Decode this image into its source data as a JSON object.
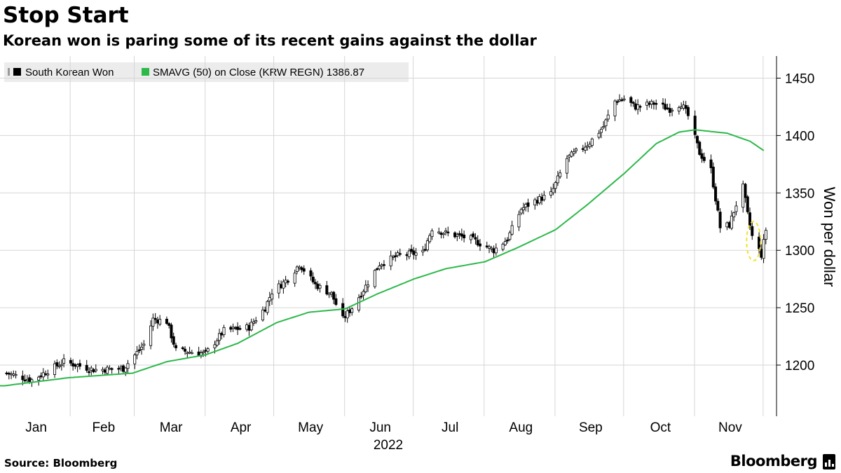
{
  "header": {
    "title": "Stop Start",
    "subtitle": "Korean won is paring some of its recent gains against the dollar"
  },
  "footer": {
    "source": "Source: Bloomberg",
    "brand": "Bloomberg"
  },
  "colors": {
    "candle": "#000000",
    "sma": "#2db84a",
    "grid": "#d6d6d6",
    "highlight": "#f2e22c",
    "legend_bg": "#ececec"
  },
  "chart_data": {
    "type": "candlestick",
    "title": "Stop Start",
    "subtitle": "Korean won is paring some of its recent gains against the dollar",
    "ylabel": "Won per dollar",
    "xlabel": "2022",
    "year_label": "2022",
    "ylim": [
      1160,
      1460
    ],
    "y_ticks": [
      1200,
      1250,
      1300,
      1350,
      1400,
      1450
    ],
    "x_tick_labels": [
      "Jan",
      "Feb",
      "Mar",
      "Apr",
      "May",
      "Jun",
      "Jul",
      "Aug",
      "Sep",
      "Oct",
      "Nov"
    ],
    "x_tick_dates": [
      "2022-01-03",
      "2022-02-01",
      "2022-03-02",
      "2022-04-01",
      "2022-05-02",
      "2022-06-02",
      "2022-07-01",
      "2022-08-01",
      "2022-09-01",
      "2022-10-04",
      "2022-11-01"
    ],
    "grid": true,
    "legend_position": "top-left",
    "legend": [
      {
        "label": "South Korean Won",
        "swatch": "candle"
      },
      {
        "label": "SMAVG (50)  on Close (KRW REGN) 1386.87",
        "swatch": "sma"
      }
    ],
    "annotation": {
      "type": "ellipse-highlight",
      "date": "2022-11-25"
    },
    "close_anchors": [
      [
        "2022-01-03",
        1193
      ],
      [
        "2022-01-14",
        1187
      ],
      [
        "2022-01-28",
        1203
      ],
      [
        "2022-02-10",
        1196
      ],
      [
        "2022-02-23",
        1197
      ],
      [
        "2022-03-04",
        1218
      ],
      [
        "2022-03-08",
        1240
      ],
      [
        "2022-03-14",
        1238
      ],
      [
        "2022-03-18",
        1213
      ],
      [
        "2022-03-31",
        1210
      ],
      [
        "2022-04-08",
        1230
      ],
      [
        "2022-04-19",
        1233
      ],
      [
        "2022-04-26",
        1250
      ],
      [
        "2022-04-29",
        1264
      ],
      [
        "2022-05-06",
        1275
      ],
      [
        "2022-05-11",
        1288
      ],
      [
        "2022-05-18",
        1270
      ],
      [
        "2022-05-25",
        1262
      ],
      [
        "2022-05-30",
        1240
      ],
      [
        "2022-06-03",
        1250
      ],
      [
        "2022-06-10",
        1272
      ],
      [
        "2022-06-15",
        1288
      ],
      [
        "2022-06-24",
        1296
      ],
      [
        "2022-07-04",
        1298
      ],
      [
        "2022-07-08",
        1319
      ],
      [
        "2022-07-14",
        1315
      ],
      [
        "2022-07-25",
        1310
      ],
      [
        "2022-08-04",
        1300
      ],
      [
        "2022-08-10",
        1310
      ],
      [
        "2022-08-16",
        1336
      ],
      [
        "2022-08-22",
        1343
      ],
      [
        "2022-08-29",
        1349
      ],
      [
        "2022-09-05",
        1380
      ],
      [
        "2022-09-15",
        1394
      ],
      [
        "2022-09-21",
        1408
      ],
      [
        "2022-09-26",
        1430
      ],
      [
        "2022-09-30",
        1432
      ],
      [
        "2022-10-05",
        1425
      ],
      [
        "2022-10-13",
        1428
      ],
      [
        "2022-10-20",
        1423
      ],
      [
        "2022-10-25",
        1428
      ],
      [
        "2022-10-28",
        1417
      ],
      [
        "2022-11-02",
        1385
      ],
      [
        "2022-11-07",
        1370
      ],
      [
        "2022-11-11",
        1320
      ],
      [
        "2022-11-15",
        1322
      ],
      [
        "2022-11-18",
        1340
      ],
      [
        "2022-11-21",
        1355
      ],
      [
        "2022-11-23",
        1331
      ],
      [
        "2022-11-25",
        1312
      ],
      [
        "2022-11-29",
        1296
      ],
      [
        "2022-12-01",
        1318
      ]
    ],
    "sma_anchors": [
      [
        "2022-01-03",
        1182
      ],
      [
        "2022-01-31",
        1189
      ],
      [
        "2022-02-28",
        1193
      ],
      [
        "2022-03-15",
        1203
      ],
      [
        "2022-04-01",
        1209
      ],
      [
        "2022-04-15",
        1219
      ],
      [
        "2022-05-02",
        1237
      ],
      [
        "2022-05-16",
        1246
      ],
      [
        "2022-06-01",
        1249
      ],
      [
        "2022-06-15",
        1262
      ],
      [
        "2022-07-01",
        1275
      ],
      [
        "2022-07-15",
        1284
      ],
      [
        "2022-08-01",
        1290
      ],
      [
        "2022-08-15",
        1302
      ],
      [
        "2022-09-01",
        1318
      ],
      [
        "2022-09-15",
        1340
      ],
      [
        "2022-10-01",
        1367
      ],
      [
        "2022-10-15",
        1393
      ],
      [
        "2022-10-25",
        1403
      ],
      [
        "2022-11-01",
        1405
      ],
      [
        "2022-11-15",
        1402
      ],
      [
        "2022-11-25",
        1395
      ],
      [
        "2022-12-01",
        1386.87
      ]
    ]
  }
}
